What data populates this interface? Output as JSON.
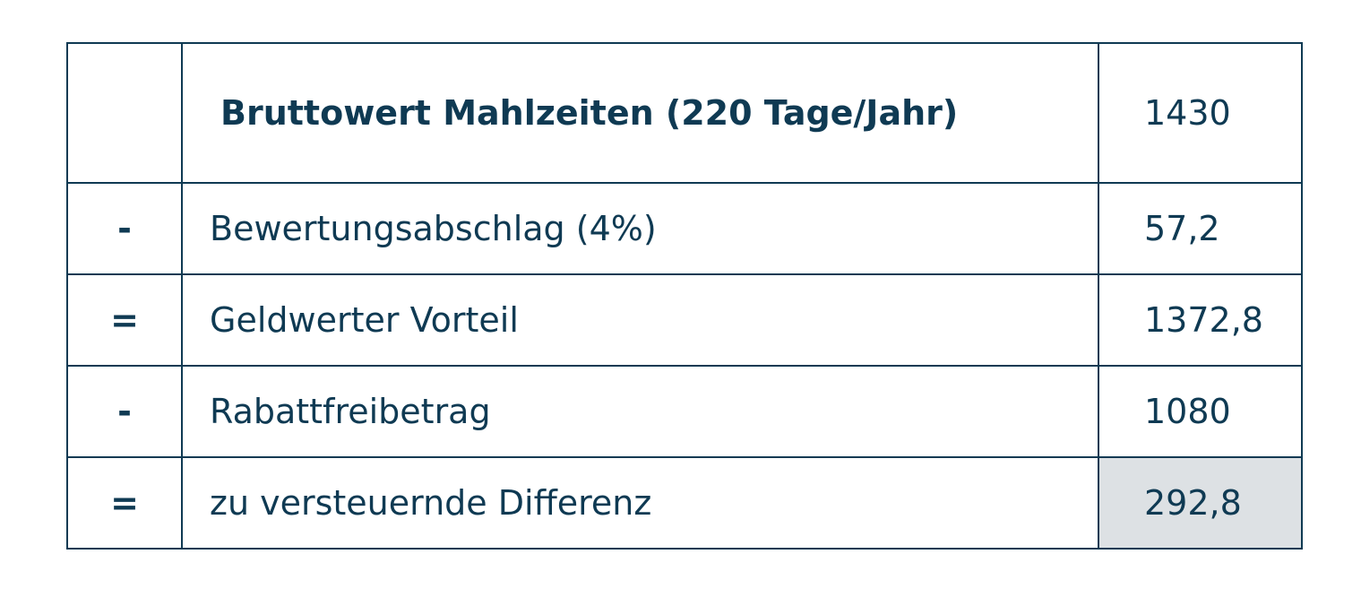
{
  "table": {
    "rows": [
      {
        "label": "Bruttowert Mahlzeiten (220 Tage/Jahr)",
        "value": "1430"
      },
      {
        "operator": "-",
        "label": "Bewertungsabschlag (4%)",
        "value": "57,2"
      },
      {
        "operator": "=",
        "label": "Geldwerter Vorteil",
        "value": "1372,8"
      },
      {
        "operator": "-",
        "label": "Rabattfreibetrag",
        "value": "1080"
      },
      {
        "operator": "=",
        "label": "zu versteuernde Differenz",
        "value": "292,8"
      }
    ]
  }
}
